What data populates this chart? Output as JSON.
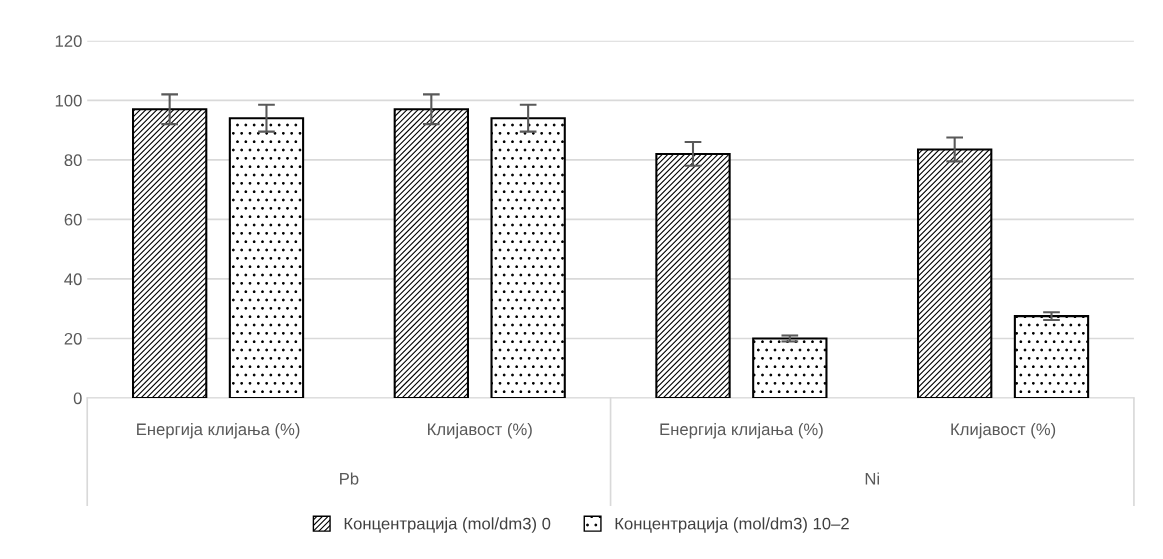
{
  "chart_data": {
    "type": "bar",
    "categories": [
      "Енергија клијања (%)",
      "Клијавост (%)",
      "Енергија клијања (%)",
      "Клијавост (%)"
    ],
    "annotations": [
      "Pb",
      "Ni"
    ],
    "series": [
      {
        "name": "Концентрација (mol/dm3) 0",
        "color": "#000000",
        "values": [
          97,
          97,
          82,
          83.5
        ],
        "errors": [
          5,
          5,
          4,
          4
        ]
      },
      {
        "name": "Концентрација (mol/dm3) 10–2",
        "color": "#000000",
        "values": [
          94,
          94,
          20,
          27.5
        ],
        "errors": [
          4.5,
          4.5,
          1,
          1.3
        ]
      }
    ],
    "ylim": [
      0,
      120
    ],
    "yticks": [
      0,
      20,
      40,
      60,
      80,
      100,
      120
    ],
    "grid": "y",
    "legend": "bottom"
  }
}
